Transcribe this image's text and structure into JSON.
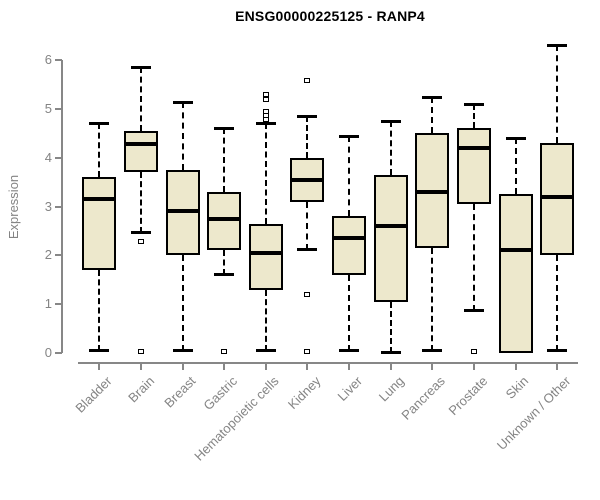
{
  "title": "ENSG00000225125 - RANP4",
  "colors": {
    "box_fill": "#EDE8CC",
    "box_border": "#000000",
    "median": "#000000",
    "axis": "#878787",
    "axis_text": "#848484",
    "title_text": "#000000",
    "background": "#FFFFFF"
  },
  "chart_data": {
    "type": "boxplot",
    "title": "ENSG00000225125 - RANP4",
    "xlabel": "",
    "ylabel": "Expression",
    "ylim": [
      0,
      6.3
    ],
    "yticks": [
      0,
      1,
      2,
      3,
      4,
      5,
      6
    ],
    "grid": false,
    "legend": "none",
    "categories": [
      "Bladder",
      "Brain",
      "Breast",
      "Gastric",
      "Hematopoietic cells",
      "Kidney",
      "Liver",
      "Lung",
      "Pancreas",
      "Prostate",
      "Skin",
      "Unknown / Other"
    ],
    "series": [
      {
        "name": "Bladder",
        "whislo": 0.05,
        "q1": 1.7,
        "med": 3.15,
        "q3": 3.6,
        "whishi": 4.7,
        "outliers": []
      },
      {
        "name": "Brain",
        "whislo": 2.45,
        "q1": 3.7,
        "med": 4.28,
        "q3": 4.55,
        "whishi": 5.85,
        "outliers": [
          2.3,
          0.05
        ]
      },
      {
        "name": "Breast",
        "whislo": 0.05,
        "q1": 2.0,
        "med": 2.9,
        "q3": 3.75,
        "whishi": 5.15,
        "outliers": []
      },
      {
        "name": "Gastric",
        "whislo": 1.6,
        "q1": 2.1,
        "med": 2.75,
        "q3": 3.3,
        "whishi": 4.6,
        "outliers": [
          0.05
        ]
      },
      {
        "name": "Hematopoietic cells",
        "whislo": 0.05,
        "q1": 1.3,
        "med": 2.05,
        "q3": 2.65,
        "whishi": 4.7,
        "outliers": [
          5.3,
          5.2,
          4.95,
          4.88,
          4.8
        ]
      },
      {
        "name": "Kidney",
        "whislo": 2.1,
        "q1": 3.1,
        "med": 3.55,
        "q3": 4.0,
        "whishi": 4.85,
        "outliers": [
          5.6,
          1.2,
          0.05
        ]
      },
      {
        "name": "Liver",
        "whislo": 0.05,
        "q1": 1.6,
        "med": 2.35,
        "q3": 2.8,
        "whishi": 4.45,
        "outliers": []
      },
      {
        "name": "Lung",
        "whislo": 0.0,
        "q1": 1.05,
        "med": 2.6,
        "q3": 3.65,
        "whishi": 4.75,
        "outliers": []
      },
      {
        "name": "Pancreas",
        "whislo": 0.05,
        "q1": 2.15,
        "med": 3.3,
        "q3": 4.5,
        "whishi": 5.25,
        "outliers": []
      },
      {
        "name": "Prostate",
        "whislo": 0.85,
        "q1": 3.05,
        "med": 4.2,
        "q3": 4.6,
        "whishi": 5.1,
        "outliers": [
          0.05
        ]
      },
      {
        "name": "Skin",
        "whislo": 0.0,
        "q1": 0.0,
        "med": 2.1,
        "q3": 3.25,
        "whishi": 4.4,
        "outliers": []
      },
      {
        "name": "Unknown / Other",
        "whislo": 0.05,
        "q1": 2.0,
        "med": 3.2,
        "q3": 4.3,
        "whishi": 6.3,
        "outliers": []
      }
    ]
  }
}
